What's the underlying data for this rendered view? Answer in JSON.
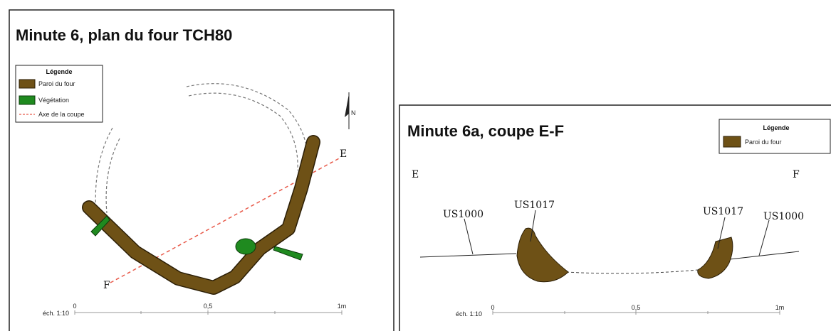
{
  "panels": [
    {
      "title": "Minute 6, plan du four TCH80",
      "legend": {
        "title": "Légende",
        "items": [
          "Paroi du four",
          "Végétation",
          "Axe de la coupe"
        ]
      },
      "north": "N",
      "points": [
        "E",
        "F"
      ],
      "scale": {
        "label": "éch. 1:10",
        "ticks": [
          "0",
          "0,5",
          "1m"
        ]
      }
    },
    {
      "title": "Minute 6a, coupe E-F",
      "legend": {
        "title": "Légende",
        "items": [
          "Paroi du four"
        ]
      },
      "points": [
        "E",
        "F"
      ],
      "units": [
        "US1000",
        "US1017",
        "US1017",
        "US1000"
      ],
      "scale": {
        "label": "éch. 1:10",
        "ticks": [
          "0",
          "0,5",
          "1m"
        ]
      }
    }
  ]
}
